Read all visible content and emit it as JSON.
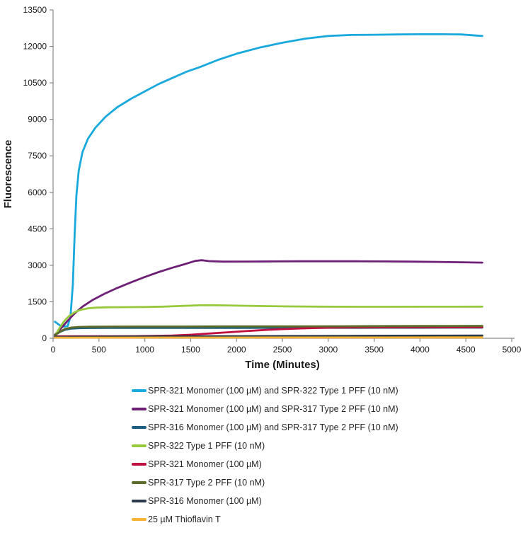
{
  "figure": {
    "background": "#FFFFFF"
  },
  "chart_data": {
    "type": "line",
    "title": "",
    "xlabel": "Time (Minutes)",
    "ylabel": "Fluorescence",
    "xlim": [
      0,
      5000
    ],
    "ylim": [
      0,
      13500
    ],
    "x_ticks": [
      0,
      500,
      1000,
      1500,
      2000,
      2500,
      3000,
      3500,
      4000,
      4500,
      5000
    ],
    "y_ticks": [
      0,
      1500,
      3000,
      4500,
      6000,
      7500,
      9000,
      10500,
      12000,
      13500
    ],
    "grid": false,
    "legend_position": "bottom-left",
    "axis_color": "#898989",
    "tick_label_color": "#1A1A1A",
    "series": [
      {
        "name": "SPR-321 Monomer (100 µM) and SPR-322 Type 1 PFF (10 nM)",
        "color": "#19A9DC",
        "points": [
          [
            20,
            680
          ],
          [
            70,
            540
          ],
          [
            120,
            480
          ],
          [
            160,
            500
          ],
          [
            190,
            900
          ],
          [
            215,
            2200
          ],
          [
            235,
            4300
          ],
          [
            255,
            5900
          ],
          [
            280,
            6900
          ],
          [
            320,
            7650
          ],
          [
            380,
            8200
          ],
          [
            460,
            8650
          ],
          [
            570,
            9100
          ],
          [
            700,
            9500
          ],
          [
            850,
            9850
          ],
          [
            1000,
            10150
          ],
          [
            1150,
            10450
          ],
          [
            1300,
            10700
          ],
          [
            1450,
            10950
          ],
          [
            1600,
            11150
          ],
          [
            1800,
            11450
          ],
          [
            2000,
            11700
          ],
          [
            2250,
            11950
          ],
          [
            2500,
            12150
          ],
          [
            2750,
            12320
          ],
          [
            3000,
            12430
          ],
          [
            3250,
            12470
          ],
          [
            3500,
            12480
          ],
          [
            3750,
            12490
          ],
          [
            4000,
            12500
          ],
          [
            4250,
            12500
          ],
          [
            4450,
            12490
          ],
          [
            4680,
            12430
          ]
        ]
      },
      {
        "name": "SPR-321 Monomer (100 µM) and SPR-317 Type 2 PFF (10 nM)",
        "color": "#6E2077",
        "points": [
          [
            20,
            150
          ],
          [
            80,
            380
          ],
          [
            150,
            680
          ],
          [
            230,
            1000
          ],
          [
            320,
            1300
          ],
          [
            430,
            1570
          ],
          [
            560,
            1830
          ],
          [
            700,
            2070
          ],
          [
            850,
            2300
          ],
          [
            1000,
            2520
          ],
          [
            1150,
            2720
          ],
          [
            1300,
            2900
          ],
          [
            1430,
            3040
          ],
          [
            1550,
            3180
          ],
          [
            1620,
            3210
          ],
          [
            1700,
            3170
          ],
          [
            1850,
            3150
          ],
          [
            2100,
            3155
          ],
          [
            2400,
            3160
          ],
          [
            2700,
            3165
          ],
          [
            3000,
            3165
          ],
          [
            3300,
            3165
          ],
          [
            3600,
            3160
          ],
          [
            3900,
            3150
          ],
          [
            4200,
            3140
          ],
          [
            4450,
            3125
          ],
          [
            4680,
            3110
          ]
        ]
      },
      {
        "name": "SPR-316 Monomer (100 µM) and SPR-317 Type 2 PFF (10 nM)",
        "color": "#1B5E80",
        "points": [
          [
            20,
            130
          ],
          [
            70,
            250
          ],
          [
            130,
            350
          ],
          [
            200,
            400
          ],
          [
            280,
            415
          ],
          [
            400,
            422
          ],
          [
            600,
            425
          ],
          [
            900,
            426
          ],
          [
            1200,
            427
          ],
          [
            1600,
            428
          ],
          [
            2000,
            429
          ],
          [
            2400,
            430
          ],
          [
            2800,
            431
          ],
          [
            3200,
            432
          ],
          [
            3600,
            433
          ],
          [
            4000,
            434
          ],
          [
            4350,
            435
          ],
          [
            4680,
            435
          ]
        ]
      },
      {
        "name": "SPR-322 Type 1 PFF (10 nM)",
        "color": "#97C93D",
        "points": [
          [
            20,
            100
          ],
          [
            70,
            420
          ],
          [
            120,
            700
          ],
          [
            170,
            900
          ],
          [
            230,
            1060
          ],
          [
            300,
            1170
          ],
          [
            380,
            1230
          ],
          [
            470,
            1260
          ],
          [
            600,
            1275
          ],
          [
            800,
            1280
          ],
          [
            1000,
            1285
          ],
          [
            1200,
            1300
          ],
          [
            1400,
            1330
          ],
          [
            1600,
            1355
          ],
          [
            1750,
            1360
          ],
          [
            1900,
            1350
          ],
          [
            2100,
            1335
          ],
          [
            2350,
            1320
          ],
          [
            2600,
            1310
          ],
          [
            2900,
            1300
          ],
          [
            3300,
            1295
          ],
          [
            3700,
            1295
          ],
          [
            4100,
            1298
          ],
          [
            4680,
            1300
          ]
        ]
      },
      {
        "name": "SPR-321 Monomer (100 µM)",
        "color": "#C00F3F",
        "points": [
          [
            20,
            80
          ],
          [
            300,
            82
          ],
          [
            600,
            85
          ],
          [
            900,
            88
          ],
          [
            1100,
            95
          ],
          [
            1300,
            110
          ],
          [
            1500,
            145
          ],
          [
            1700,
            195
          ],
          [
            1900,
            245
          ],
          [
            2100,
            295
          ],
          [
            2300,
            340
          ],
          [
            2500,
            375
          ],
          [
            2700,
            405
          ],
          [
            2900,
            425
          ],
          [
            3100,
            440
          ],
          [
            3300,
            448
          ],
          [
            3600,
            452
          ],
          [
            4000,
            454
          ],
          [
            4350,
            455
          ],
          [
            4680,
            456
          ]
        ]
      },
      {
        "name": "SPR-317 Type 2 PFF (10 nM)",
        "color": "#5C6B29",
        "points": [
          [
            20,
            120
          ],
          [
            70,
            260
          ],
          [
            130,
            380
          ],
          [
            200,
            440
          ],
          [
            280,
            465
          ],
          [
            400,
            475
          ],
          [
            600,
            480
          ],
          [
            900,
            482
          ],
          [
            1200,
            484
          ],
          [
            1600,
            486
          ],
          [
            2000,
            488
          ],
          [
            2400,
            490
          ],
          [
            2800,
            492
          ],
          [
            3200,
            496
          ],
          [
            3600,
            500
          ],
          [
            4000,
            504
          ],
          [
            4350,
            507
          ],
          [
            4680,
            510
          ]
        ]
      },
      {
        "name": "SPR-316 Monomer (100 µM)",
        "color": "#2B3A4B",
        "points": [
          [
            20,
            55
          ],
          [
            300,
            65
          ],
          [
            700,
            72
          ],
          [
            1200,
            78
          ],
          [
            1700,
            83
          ],
          [
            2200,
            88
          ],
          [
            2700,
            93
          ],
          [
            3200,
            98
          ],
          [
            3700,
            104
          ],
          [
            4200,
            108
          ],
          [
            4680,
            112
          ]
        ]
      },
      {
        "name": "25 µM Thioflavin T",
        "color": "#F7B334",
        "points": [
          [
            20,
            25
          ],
          [
            600,
            27
          ],
          [
            1200,
            29
          ],
          [
            1800,
            30
          ],
          [
            2400,
            31
          ],
          [
            3000,
            32
          ],
          [
            3600,
            33
          ],
          [
            4200,
            34
          ],
          [
            4680,
            35
          ]
        ]
      }
    ]
  }
}
